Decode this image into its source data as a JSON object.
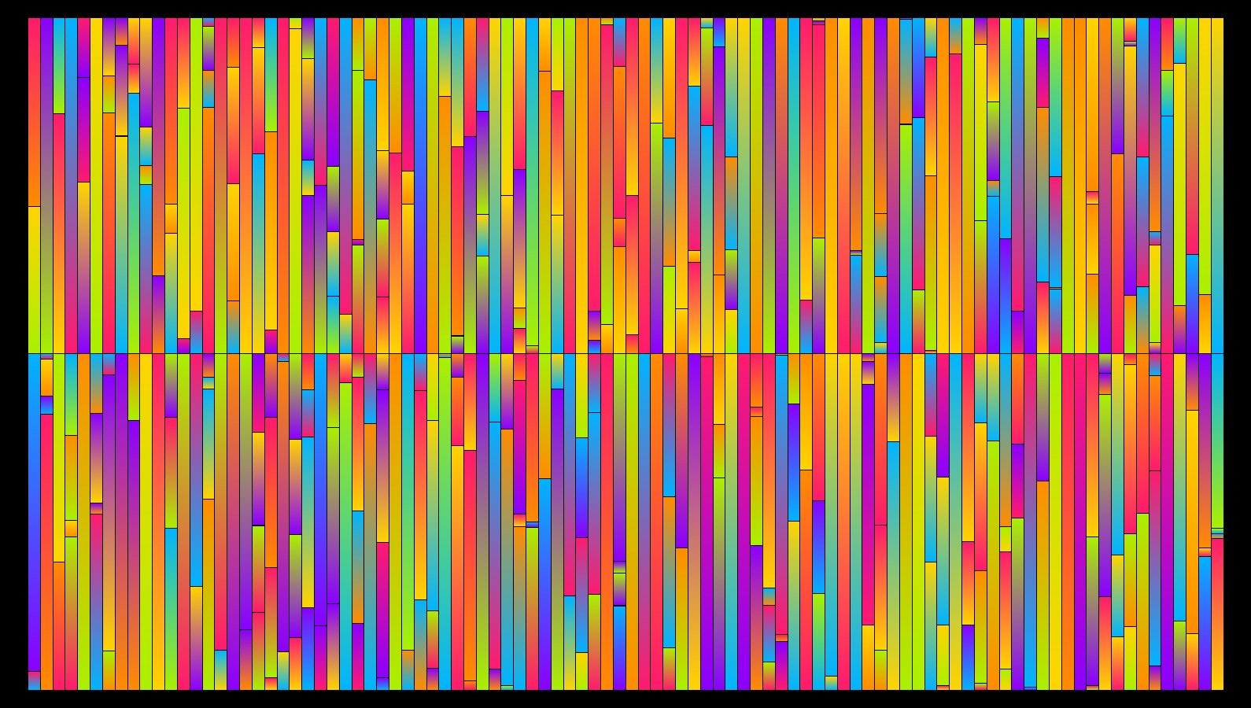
{
  "palette": [
    "#ff1a6e",
    "#ff8c00",
    "#ffd400",
    "#aaf000",
    "#00b4ff",
    "#8a00ff"
  ],
  "bands": [
    {
      "name": "top-band",
      "column_count": 96
    },
    {
      "name": "bottom-band",
      "column_count": 96
    }
  ],
  "seed": 7
}
